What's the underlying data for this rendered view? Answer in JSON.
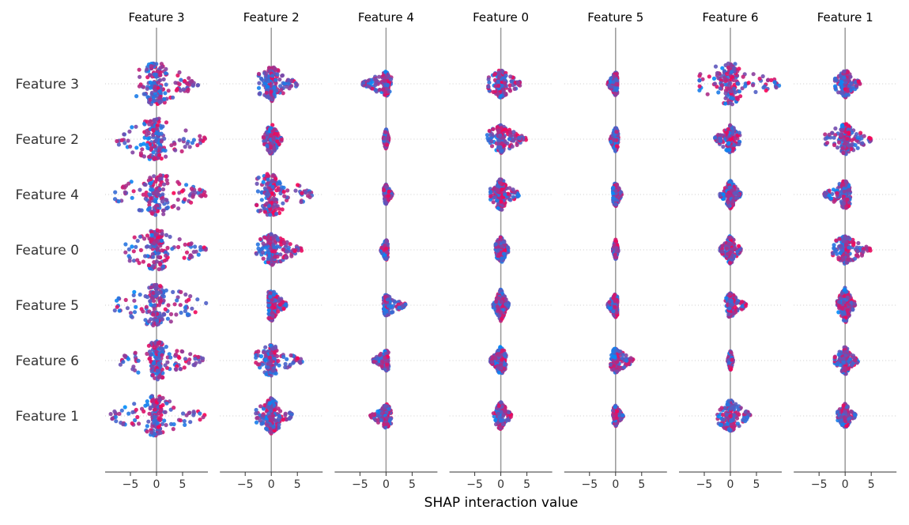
{
  "chart_data": {
    "type": "scatter",
    "subtype": "shap-interaction-beeswarm-matrix",
    "xlabel": "SHAP interaction value",
    "row_features": [
      "Feature 3",
      "Feature 2",
      "Feature 4",
      "Feature 0",
      "Feature 5",
      "Feature 6",
      "Feature 1"
    ],
    "column_features": [
      "Feature 3",
      "Feature 2",
      "Feature 4",
      "Feature 0",
      "Feature 5",
      "Feature 6",
      "Feature 1"
    ],
    "xlim": [
      -10,
      10
    ],
    "x_ticks": [
      -5,
      0,
      5
    ],
    "x_tick_labels": [
      "−5",
      "0",
      "5"
    ],
    "grid": "dotted horizontal per row",
    "colors": {
      "low": "#008bfb",
      "high": "#ff0051",
      "zero_line": "#999999",
      "axis": "#333333",
      "grid": "#cccccc"
    },
    "note": "Each cell: [min, max, peak_spread] of SHAP interaction values (diagonal = main effect)",
    "cells": [
      [
        [
          -4,
          8,
          0.9
        ],
        [
          -2.5,
          5,
          0.6
        ],
        [
          -4.5,
          1,
          0.3
        ],
        [
          -2.5,
          4,
          0.4
        ],
        [
          -1.5,
          0.3,
          0.3
        ],
        [
          -6,
          9.5,
          0.9
        ],
        [
          -2,
          3,
          0.4
        ]
      ],
      [
        [
          -8,
          9.5,
          0.9
        ],
        [
          -1.5,
          2,
          0.5
        ],
        [
          -0.5,
          0.5,
          0.2
        ],
        [
          -3,
          5,
          0.4
        ],
        [
          -1,
          0.5,
          0.3
        ],
        [
          -3,
          2,
          0.4
        ],
        [
          -4,
          5,
          0.5
        ]
      ],
      [
        [
          -8,
          9.5,
          0.9
        ],
        [
          -3,
          8,
          0.9
        ],
        [
          -0.5,
          1.2,
          0.2
        ],
        [
          -2,
          3.5,
          0.5
        ],
        [
          -0.5,
          1.2,
          0.3
        ],
        [
          -2,
          2,
          0.4
        ],
        [
          -4,
          1,
          0.4
        ]
      ],
      [
        [
          -6,
          9.5,
          0.8
        ],
        [
          -3,
          6,
          0.5
        ],
        [
          -1,
          0.3,
          0.2
        ],
        [
          -1,
          1.5,
          0.4
        ],
        [
          -0.5,
          0.5,
          0.2
        ],
        [
          -2,
          2,
          0.4
        ],
        [
          -2.5,
          5,
          0.4
        ]
      ],
      [
        [
          -8,
          9.5,
          0.9
        ],
        [
          -0.5,
          3,
          0.5
        ],
        [
          -0.5,
          4,
          0.2
        ],
        [
          -1.5,
          1.5,
          0.5
        ],
        [
          -1.5,
          0.3,
          0.3
        ],
        [
          -1,
          3,
          0.3
        ],
        [
          -1.5,
          2,
          0.6
        ]
      ],
      [
        [
          -7,
          9,
          0.7
        ],
        [
          -3,
          6,
          0.5
        ],
        [
          -2.5,
          0.5,
          0.2
        ],
        [
          -2,
          1,
          0.4
        ],
        [
          -1,
          3.5,
          0.3
        ],
        [
          -0.5,
          0.5,
          0.2
        ],
        [
          -2,
          2.5,
          0.4
        ]
      ],
      [
        [
          -9,
          9.5,
          0.8
        ],
        [
          -3,
          4,
          0.6
        ],
        [
          -3,
          1,
          0.3
        ],
        [
          -1.5,
          2,
          0.4
        ],
        [
          -0.5,
          1.5,
          0.2
        ],
        [
          -2.5,
          4,
          0.5
        ],
        [
          -1.5,
          2,
          0.3
        ]
      ]
    ]
  }
}
